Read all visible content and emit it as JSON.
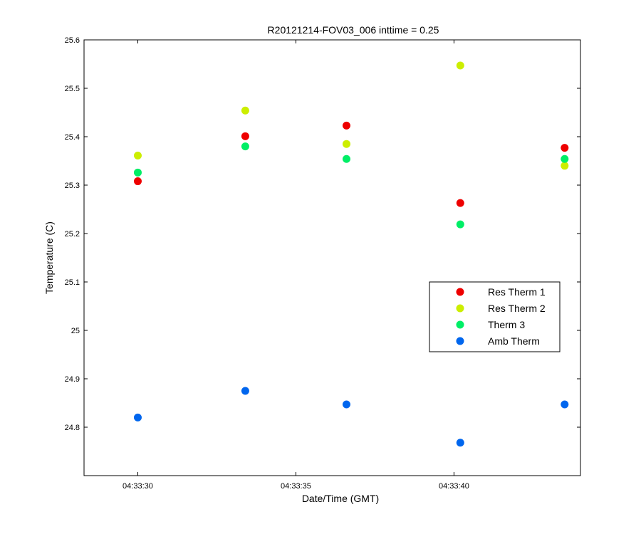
{
  "chart_data": {
    "type": "scatter",
    "title": "R20121214-FOV03_006 inttime = 0.25",
    "xlabel": "Date/Time (GMT)",
    "ylabel": "Temperature (C)",
    "xlim": [
      "04:33:28.3",
      "04:33:44.0"
    ],
    "ylim": [
      24.7,
      25.6
    ],
    "x_ticks": [
      "04:33:30",
      "04:33:35",
      "04:33:40"
    ],
    "y_ticks": [
      "24.8",
      "24.9",
      "25",
      "25.1",
      "25.2",
      "25.3",
      "25.4",
      "25.5",
      "25.6"
    ],
    "grid": false,
    "legend_position": "right",
    "x": [
      "04:33:30.0",
      "04:33:33.4",
      "04:33:36.6",
      "04:33:40.2",
      "04:33:43.5"
    ],
    "series": [
      {
        "name": "Res Therm 1",
        "color": "#ee0000",
        "values": [
          25.308,
          25.401,
          25.423,
          25.263,
          25.377
        ]
      },
      {
        "name": "Res Therm 2",
        "color": "#ccee00",
        "values": [
          25.361,
          25.454,
          25.385,
          25.547,
          25.34
        ]
      },
      {
        "name": "Therm 3",
        "color": "#00ee66",
        "values": [
          25.326,
          25.38,
          25.354,
          25.219,
          25.354
        ]
      },
      {
        "name": "Amb Therm",
        "color": "#0066ee",
        "values": [
          24.82,
          24.875,
          24.847,
          24.768,
          24.847
        ]
      }
    ]
  }
}
